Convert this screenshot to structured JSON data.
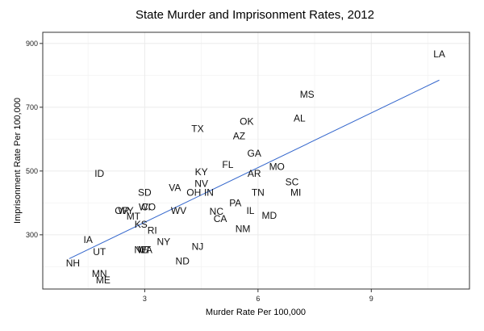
{
  "chart_data": {
    "type": "scatter",
    "title": "State Murder and Imprisonment Rates, 2012",
    "xlabel": "Murder Rate Per 100,000",
    "ylabel": "Imprisonment Rate Per 100,000",
    "xlim": [
      0.3,
      11.6
    ],
    "ylim": [
      130,
      935
    ],
    "xticks": [
      3,
      6,
      9
    ],
    "yticks": [
      300,
      500,
      700,
      900
    ],
    "grid": true,
    "points": [
      {
        "label": "LA",
        "x": 10.8,
        "y": 867
      },
      {
        "label": "MS",
        "x": 7.3,
        "y": 740
      },
      {
        "label": "AL",
        "x": 7.1,
        "y": 665
      },
      {
        "label": "OK",
        "x": 5.7,
        "y": 655
      },
      {
        "label": "TX",
        "x": 4.4,
        "y": 632
      },
      {
        "label": "AZ",
        "x": 5.5,
        "y": 610
      },
      {
        "label": "GA",
        "x": 5.9,
        "y": 555
      },
      {
        "label": "FL",
        "x": 5.2,
        "y": 520
      },
      {
        "label": "MO",
        "x": 6.5,
        "y": 513
      },
      {
        "label": "AR",
        "x": 5.9,
        "y": 492
      },
      {
        "label": "ID",
        "x": 1.8,
        "y": 492
      },
      {
        "label": "KY",
        "x": 4.5,
        "y": 497
      },
      {
        "label": "SC",
        "x": 6.9,
        "y": 465
      },
      {
        "label": "NV",
        "x": 4.5,
        "y": 460
      },
      {
        "label": "VA",
        "x": 3.8,
        "y": 448
      },
      {
        "label": "MI",
        "x": 7.0,
        "y": 432
      },
      {
        "label": "TN",
        "x": 6.0,
        "y": 432
      },
      {
        "label": "OH",
        "x": 4.3,
        "y": 433
      },
      {
        "label": "IN",
        "x": 4.7,
        "y": 433
      },
      {
        "label": "SD",
        "x": 3.0,
        "y": 433
      },
      {
        "label": "PA",
        "x": 5.4,
        "y": 400
      },
      {
        "label": "WI",
        "x": 3.0,
        "y": 387
      },
      {
        "label": "CO",
        "x": 3.1,
        "y": 387
      },
      {
        "label": "WV",
        "x": 3.9,
        "y": 375
      },
      {
        "label": "NC",
        "x": 4.9,
        "y": 373
      },
      {
        "label": "IL",
        "x": 5.8,
        "y": 376
      },
      {
        "label": "OR",
        "x": 2.4,
        "y": 375
      },
      {
        "label": "WY",
        "x": 2.5,
        "y": 375
      },
      {
        "label": "MD",
        "x": 6.3,
        "y": 360
      },
      {
        "label": "MT",
        "x": 2.7,
        "y": 358
      },
      {
        "label": "CA",
        "x": 5.0,
        "y": 350
      },
      {
        "label": "KS",
        "x": 2.9,
        "y": 333
      },
      {
        "label": "RI",
        "x": 3.2,
        "y": 313
      },
      {
        "label": "NM",
        "x": 5.6,
        "y": 318
      },
      {
        "label": "IA",
        "x": 1.5,
        "y": 285
      },
      {
        "label": "NY",
        "x": 3.5,
        "y": 278
      },
      {
        "label": "NJ",
        "x": 4.4,
        "y": 263
      },
      {
        "label": "UT",
        "x": 1.8,
        "y": 247
      },
      {
        "label": "NE",
        "x": 2.9,
        "y": 253
      },
      {
        "label": "VT",
        "x": 3.0,
        "y": 253
      },
      {
        "label": "WA",
        "x": 3.0,
        "y": 253
      },
      {
        "label": "ND",
        "x": 4.0,
        "y": 217
      },
      {
        "label": "NH",
        "x": 1.1,
        "y": 211
      },
      {
        "label": "MN",
        "x": 1.8,
        "y": 178
      },
      {
        "label": "ME",
        "x": 1.9,
        "y": 158
      }
    ],
    "fit_line": {
      "x": [
        1.0,
        10.8
      ],
      "y": [
        225,
        785
      ],
      "color": "#3366cc"
    },
    "colors": {
      "background": "#ffffff",
      "grid": "#ebebeb",
      "panel_border": "#333333",
      "text": "#111111"
    }
  }
}
